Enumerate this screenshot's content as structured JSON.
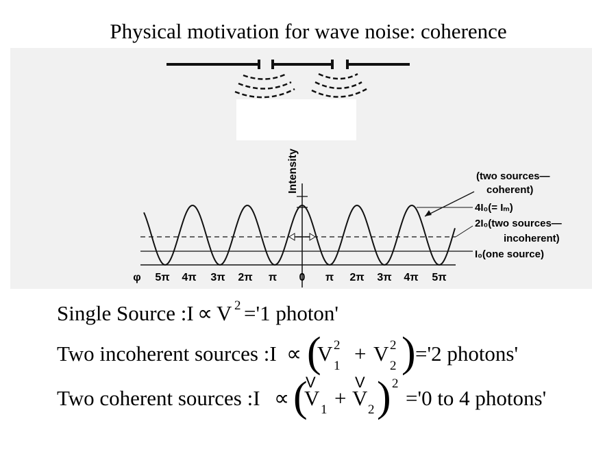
{
  "title": "Physical motivation for wave noise: coherence",
  "figure": {
    "y_label": "Intensity",
    "annotations": [
      "(two sources—",
      "coherent)",
      "4I₀(= Iₘ)",
      "2I₀(two sources—",
      "incoherent)",
      "I₀(one source)"
    ],
    "x_labels": [
      "φ",
      "5π",
      "4π",
      "3π",
      "2π",
      "π",
      "0",
      "π",
      "2π",
      "3π",
      "4π",
      "5π"
    ]
  },
  "equations": [
    {
      "parts": [
        "Single Source :I",
        "∝",
        "V",
        "2",
        "='1 photon'"
      ]
    },
    {
      "parts": [
        "Two incoherent sources :I",
        "∝",
        "(",
        "V",
        "1",
        "2",
        "+",
        "V",
        "2",
        "2",
        ")",
        "='2 photons'"
      ]
    },
    {
      "parts": [
        "Two coherent sources :I",
        "∝",
        "(",
        "V",
        "V",
        "V",
        "1",
        "+",
        "V",
        "2",
        ")",
        "2",
        "='0 to 4 photons'"
      ]
    }
  ]
}
